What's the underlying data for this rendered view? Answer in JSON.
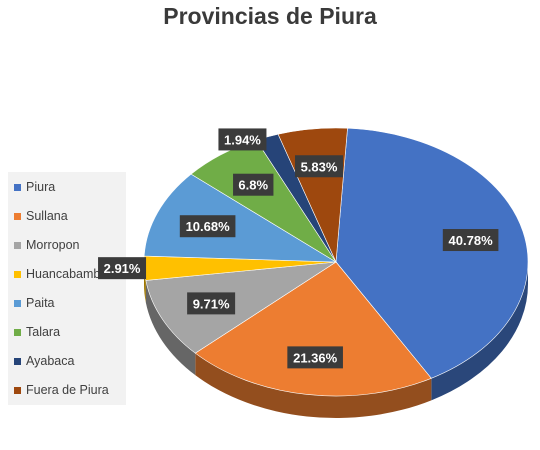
{
  "chart_data": {
    "type": "pie",
    "title": "Provincias de Piura",
    "categories": [
      "Piura",
      "Sullana",
      "Morropon",
      "Huancabamba",
      "Paita",
      "Talara",
      "Ayabaca",
      "Fuera de Piura"
    ],
    "values": [
      40.78,
      21.36,
      9.71,
      2.91,
      10.68,
      6.8,
      1.94,
      5.83
    ],
    "data_labels": [
      "40.78%",
      "21.36%",
      "9.71%",
      "2.91%",
      "10.68%",
      "6.8%",
      "1.94%",
      "5.83%"
    ],
    "colors": [
      "#4472c4",
      "#ed7d31",
      "#a5a5a5",
      "#ffc000",
      "#5b9bd5",
      "#70ad47",
      "#264478",
      "#9e480e"
    ],
    "legend_position": "left",
    "style": "3d"
  }
}
